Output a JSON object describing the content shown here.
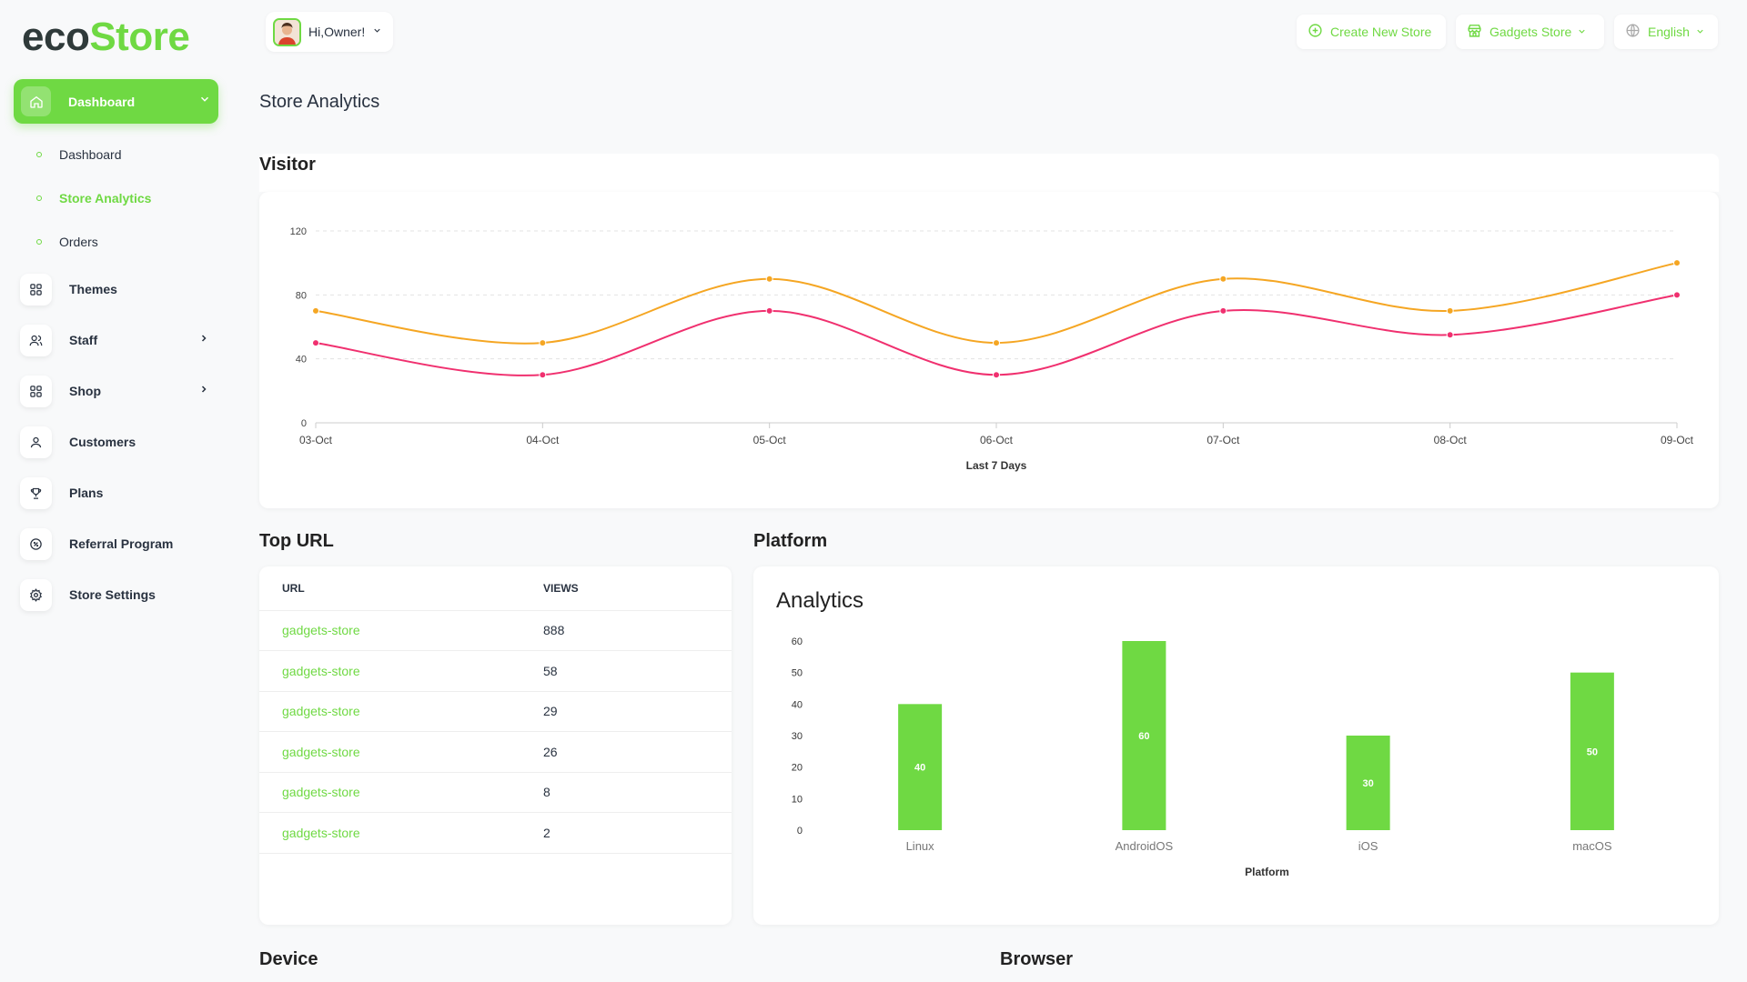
{
  "app": {
    "logo_eco": "eco",
    "logo_store": "Store"
  },
  "sidebar": {
    "dashboard_label": "Dashboard",
    "sub_items": [
      {
        "label": "Dashboard"
      },
      {
        "label": "Store Analytics"
      },
      {
        "label": "Orders"
      }
    ],
    "items": [
      {
        "label": "Themes"
      },
      {
        "label": "Staff"
      },
      {
        "label": "Shop"
      },
      {
        "label": "Customers"
      },
      {
        "label": "Plans"
      },
      {
        "label": "Referral Program"
      },
      {
        "label": "Store Settings"
      }
    ]
  },
  "header": {
    "greeting": "Hi,Owner!",
    "create_store": "Create New Store",
    "current_store": "Gadgets Store",
    "language": "English"
  },
  "page": {
    "title": "Store Analytics",
    "visitor_title": "Visitor",
    "top_url_title": "Top URL",
    "platform_title": "Platform",
    "device_title": "Device",
    "browser_title": "Browser"
  },
  "top_url": {
    "columns": [
      "URL",
      "VIEWS"
    ],
    "rows": [
      {
        "url": "gadgets-store",
        "views": "888"
      },
      {
        "url": "gadgets-store",
        "views": "58"
      },
      {
        "url": "gadgets-store",
        "views": "29"
      },
      {
        "url": "gadgets-store",
        "views": "26"
      },
      {
        "url": "gadgets-store",
        "views": "8"
      },
      {
        "url": "gadgets-store",
        "views": "2"
      }
    ]
  },
  "colors": {
    "accent": "#6fd943",
    "orange": "#f5a623",
    "pink": "#f0306f"
  },
  "chart_data": [
    {
      "type": "line",
      "xlabel": "Last 7 Days",
      "categories": [
        "03-Oct",
        "04-Oct",
        "05-Oct",
        "06-Oct",
        "07-Oct",
        "08-Oct",
        "09-Oct"
      ],
      "ylim": [
        0,
        120
      ],
      "yticks": [
        0,
        40,
        80,
        120
      ],
      "grid": true,
      "series": [
        {
          "values": [
            70,
            50,
            90,
            50,
            90,
            70,
            100
          ],
          "color": "#f5a623"
        },
        {
          "values": [
            50,
            30,
            70,
            30,
            70,
            55,
            80
          ],
          "color": "#f0306f"
        }
      ]
    },
    {
      "type": "bar",
      "title": "Analytics",
      "xlabel": "Platform",
      "categories": [
        "Linux",
        "AndroidOS",
        "iOS",
        "macOS"
      ],
      "values": [
        40,
        60,
        30,
        50
      ],
      "ylim": [
        0,
        60
      ],
      "yticks": [
        0,
        10,
        20,
        30,
        40,
        50,
        60
      ],
      "color": "#6fd943"
    }
  ]
}
